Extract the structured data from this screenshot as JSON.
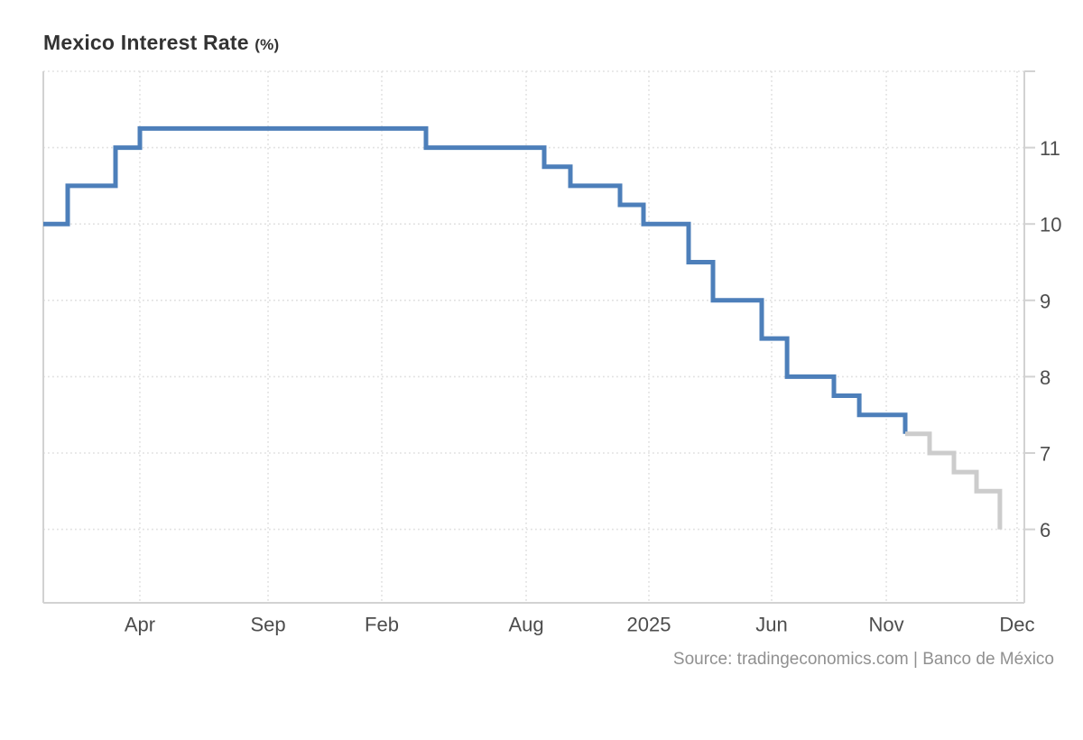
{
  "chart": {
    "title_main": "Mexico Interest Rate",
    "title_unit": "(%)",
    "source": "Source: tradingeconomics.com | Banco de México"
  },
  "chart_data": {
    "type": "line",
    "style": "step",
    "title": "Mexico Interest Rate (%)",
    "ylabel": "%",
    "ylim": [
      5,
      12
    ],
    "grid": "dotted",
    "legend": "none",
    "y_axis_side": "right",
    "y_ticks": [
      11,
      10,
      9,
      8,
      7,
      6
    ],
    "y_gridlines": [
      12,
      11,
      10,
      9,
      8,
      7,
      6
    ],
    "x_ticks": [
      {
        "label": "Apr",
        "x": 0.0984
      },
      {
        "label": "Sep",
        "x": 0.2291
      },
      {
        "label": "Feb",
        "x": 0.345
      },
      {
        "label": "Aug",
        "x": 0.4922
      },
      {
        "label": "2025",
        "x": 0.6173
      },
      {
        "label": "Jun",
        "x": 0.7424
      },
      {
        "label": "Nov",
        "x": 0.8593
      },
      {
        "label": "Dec",
        "x": 0.9926
      }
    ],
    "series": [
      {
        "name": "actual",
        "color": "#4d7fba",
        "points": [
          [
            0.0,
            10.0
          ],
          [
            0.0248,
            10.5
          ],
          [
            0.0736,
            11.0
          ],
          [
            0.0984,
            11.25
          ],
          [
            0.3901,
            11.0
          ],
          [
            0.5106,
            10.75
          ],
          [
            0.5373,
            10.5
          ],
          [
            0.5879,
            10.25
          ],
          [
            0.6118,
            10.0
          ],
          [
            0.6578,
            9.5
          ],
          [
            0.6826,
            9.0
          ],
          [
            0.7323,
            8.5
          ],
          [
            0.7581,
            8.0
          ],
          [
            0.8059,
            7.75
          ],
          [
            0.8317,
            7.5
          ],
          [
            0.8786,
            7.25
          ]
        ]
      },
      {
        "name": "forecast",
        "color": "#cccccc",
        "points": [
          [
            0.8786,
            7.25
          ],
          [
            0.9034,
            7.0
          ],
          [
            0.9282,
            6.75
          ],
          [
            0.9512,
            6.5
          ],
          [
            0.9751,
            6.0
          ]
        ]
      }
    ],
    "colors": {
      "grid": "#e0e0e0",
      "axis": "#d2d2d2",
      "tick_label": "#4d4d4d"
    },
    "source": "Source: tradingeconomics.com | Banco de México"
  }
}
